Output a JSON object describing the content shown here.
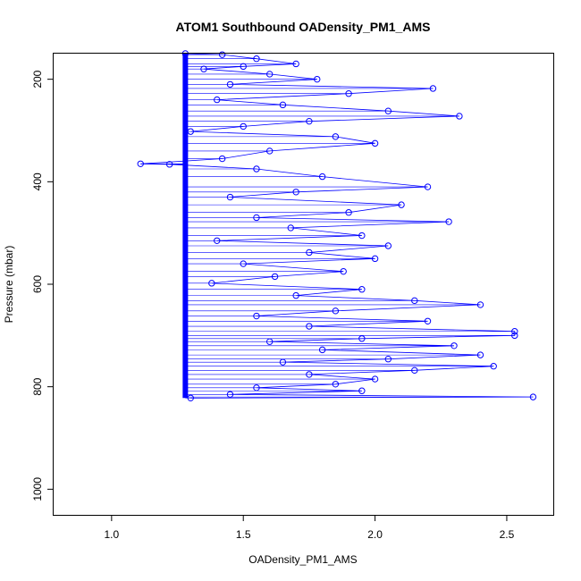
{
  "chart_data": {
    "type": "scatter",
    "title": "ATOM1 Southbound OADensity_PM1_AMS",
    "xlabel": "OADensity_PM1_AMS",
    "ylabel": "Pressure (mbar)",
    "xlim": [
      0.78,
      2.68
    ],
    "ylim": [
      1050,
      150
    ],
    "y_reversed": true,
    "x_ticks": [
      1.0,
      1.5,
      2.0,
      2.5
    ],
    "x_tick_labels": [
      "1.0",
      "1.5",
      "2.0",
      "2.5"
    ],
    "y_ticks": [
      200,
      400,
      600,
      800,
      1000
    ],
    "y_tick_labels": [
      "200",
      "400",
      "600",
      "800",
      "1000"
    ],
    "grid": false,
    "legend": "none",
    "series_style": "points connected by lines (open circles)",
    "color": "#0000ff",
    "baseline_x": 1.28,
    "pressure_range": [
      150,
      822
    ],
    "points": [
      {
        "x": 1.28,
        "y": 150
      },
      {
        "x": 1.42,
        "y": 152
      },
      {
        "x": 1.55,
        "y": 160
      },
      {
        "x": 1.7,
        "y": 170
      },
      {
        "x": 1.5,
        "y": 175
      },
      {
        "x": 1.35,
        "y": 180
      },
      {
        "x": 1.6,
        "y": 190
      },
      {
        "x": 1.78,
        "y": 200
      },
      {
        "x": 1.45,
        "y": 210
      },
      {
        "x": 2.22,
        "y": 218
      },
      {
        "x": 1.9,
        "y": 228
      },
      {
        "x": 1.4,
        "y": 240
      },
      {
        "x": 1.65,
        "y": 250
      },
      {
        "x": 2.05,
        "y": 262
      },
      {
        "x": 2.32,
        "y": 272
      },
      {
        "x": 1.75,
        "y": 282
      },
      {
        "x": 1.5,
        "y": 292
      },
      {
        "x": 1.3,
        "y": 302
      },
      {
        "x": 1.85,
        "y": 312
      },
      {
        "x": 2.0,
        "y": 325
      },
      {
        "x": 1.6,
        "y": 340
      },
      {
        "x": 1.42,
        "y": 355
      },
      {
        "x": 1.11,
        "y": 365
      },
      {
        "x": 1.22,
        "y": 366
      },
      {
        "x": 1.55,
        "y": 375
      },
      {
        "x": 1.8,
        "y": 390
      },
      {
        "x": 2.2,
        "y": 410
      },
      {
        "x": 1.7,
        "y": 420
      },
      {
        "x": 1.45,
        "y": 430
      },
      {
        "x": 2.1,
        "y": 445
      },
      {
        "x": 1.9,
        "y": 460
      },
      {
        "x": 1.55,
        "y": 470
      },
      {
        "x": 2.28,
        "y": 478
      },
      {
        "x": 1.68,
        "y": 490
      },
      {
        "x": 1.95,
        "y": 505
      },
      {
        "x": 1.4,
        "y": 515
      },
      {
        "x": 2.05,
        "y": 525
      },
      {
        "x": 1.75,
        "y": 538
      },
      {
        "x": 2.0,
        "y": 550
      },
      {
        "x": 1.5,
        "y": 560
      },
      {
        "x": 1.88,
        "y": 575
      },
      {
        "x": 1.62,
        "y": 585
      },
      {
        "x": 1.38,
        "y": 598
      },
      {
        "x": 1.95,
        "y": 610
      },
      {
        "x": 1.7,
        "y": 622
      },
      {
        "x": 2.15,
        "y": 632
      },
      {
        "x": 2.4,
        "y": 640
      },
      {
        "x": 1.85,
        "y": 652
      },
      {
        "x": 1.55,
        "y": 662
      },
      {
        "x": 2.2,
        "y": 672
      },
      {
        "x": 1.75,
        "y": 682
      },
      {
        "x": 2.53,
        "y": 692
      },
      {
        "x": 2.53,
        "y": 700
      },
      {
        "x": 1.95,
        "y": 706
      },
      {
        "x": 1.6,
        "y": 712
      },
      {
        "x": 2.3,
        "y": 720
      },
      {
        "x": 1.8,
        "y": 728
      },
      {
        "x": 2.4,
        "y": 738
      },
      {
        "x": 2.05,
        "y": 746
      },
      {
        "x": 1.65,
        "y": 752
      },
      {
        "x": 2.45,
        "y": 760
      },
      {
        "x": 2.15,
        "y": 768
      },
      {
        "x": 1.75,
        "y": 776
      },
      {
        "x": 2.0,
        "y": 785
      },
      {
        "x": 1.85,
        "y": 795
      },
      {
        "x": 1.55,
        "y": 802
      },
      {
        "x": 1.95,
        "y": 808
      },
      {
        "x": 1.45,
        "y": 815
      },
      {
        "x": 2.6,
        "y": 820
      },
      {
        "x": 1.3,
        "y": 822
      }
    ]
  }
}
